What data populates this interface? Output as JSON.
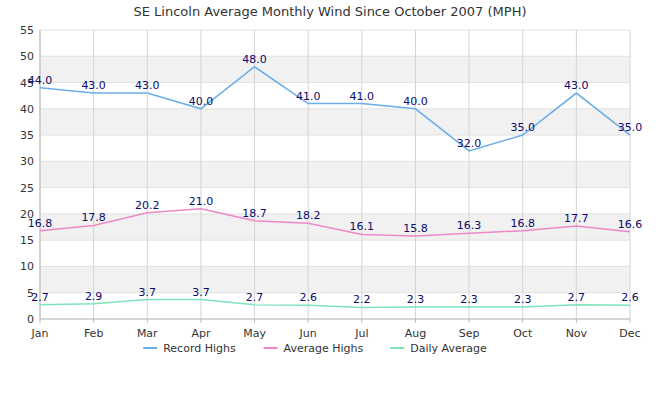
{
  "chart_data": {
    "type": "line",
    "title": "SE Lincoln Average Monthly Wind Since October 2007 (MPH)",
    "categories": [
      "Jan",
      "Feb",
      "Mar",
      "Apr",
      "May",
      "Jun",
      "Jul",
      "Aug",
      "Sep",
      "Oct",
      "Nov",
      "Dec"
    ],
    "series": [
      {
        "name": "Record Highs",
        "color": "#6aaee8",
        "values": [
          44,
          43,
          43,
          40,
          48,
          41,
          41,
          40,
          32,
          35,
          43,
          35
        ],
        "value_labels": [
          "44.0",
          "43.0",
          "43.0",
          "40.0",
          "48.0",
          "41.0",
          "41.0",
          "40.0",
          "32.0",
          "35.0",
          "43.0",
          "35.0"
        ]
      },
      {
        "name": "Average Highs",
        "color": "#ee88c8",
        "values": [
          16.8,
          17.8,
          20.2,
          21.0,
          18.7,
          18.2,
          16.1,
          15.8,
          16.3,
          16.8,
          17.7,
          16.6
        ],
        "value_labels": [
          "16.8",
          "17.8",
          "20.2",
          "21.0",
          "18.7",
          "18.2",
          "16.1",
          "15.8",
          "16.3",
          "16.8",
          "17.7",
          "16.6"
        ]
      },
      {
        "name": "Daily Average",
        "color": "#7de3b8",
        "values": [
          2.7,
          2.9,
          3.7,
          3.7,
          2.7,
          2.6,
          2.2,
          2.3,
          2.3,
          2.3,
          2.7,
          2.6
        ],
        "value_labels": [
          "2.7",
          "2.9",
          "3.7",
          "3.7",
          "2.7",
          "2.6",
          "2.2",
          "2.3",
          "2.3",
          "2.3",
          "2.7",
          "2.6"
        ]
      }
    ],
    "ylim": [
      0,
      55
    ],
    "yticks": [
      0,
      5,
      10,
      15,
      20,
      25,
      30,
      35,
      40,
      45,
      50,
      55
    ],
    "grid": true,
    "legend": "bottom",
    "data_labels": true
  }
}
